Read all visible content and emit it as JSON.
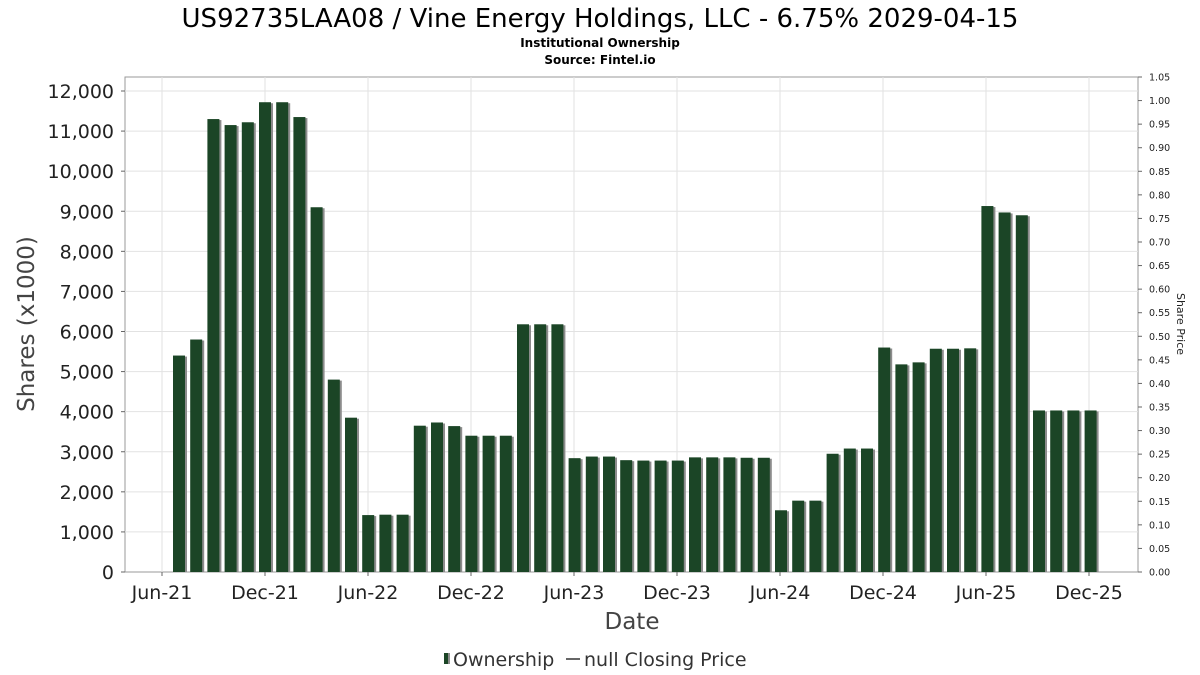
{
  "chart_data": {
    "type": "bar",
    "title": "US92735LAA08 / Vine Energy Holdings, LLC - 6.75% 2029-04-15",
    "subtitle_lines": [
      "Institutional Ownership",
      "Source: Fintel.io"
    ],
    "xlabel": "Date",
    "ylabel": "Shares (x1000)",
    "y2label": "Share Price",
    "ylim": [
      0,
      12000
    ],
    "y_ticks": [
      "0",
      "1,000",
      "2,000",
      "3,000",
      "4,000",
      "5,000",
      "6,000",
      "7,000",
      "8,000",
      "9,000",
      "10,000",
      "11,000",
      "12,000"
    ],
    "y2lim": [
      0,
      1.05
    ],
    "y2_ticks": [
      "0.00",
      "0.05",
      "0.10",
      "0.15",
      "0.20",
      "0.25",
      "0.30",
      "0.35",
      "0.40",
      "0.45",
      "0.50",
      "0.55",
      "0.60",
      "0.65",
      "0.70",
      "0.75",
      "0.80",
      "0.85",
      "0.90",
      "0.95",
      "1.00",
      "1.05"
    ],
    "x_ticks": [
      "Jun-21",
      "Dec-21",
      "Jun-22",
      "Dec-22",
      "Jun-23",
      "Dec-23",
      "Jun-24",
      "Dec-24",
      "Jun-25",
      "Dec-25"
    ],
    "grid": true,
    "legend_position": "bottom",
    "colors": {
      "bar": "#1b4526",
      "bar_shadow": "#8c8c8c",
      "grid": "#e2e2e2"
    },
    "series": [
      {
        "name": "Ownership",
        "legend_label": "Ownership",
        "values": [
          5400,
          5800,
          11300,
          11150,
          11220,
          11720,
          11720,
          11350,
          9100,
          4800,
          3850,
          1420,
          1430,
          1430,
          3650,
          3730,
          3640,
          3400,
          3400,
          3400,
          6180,
          6180,
          6180,
          2840,
          2880,
          2880,
          2790,
          2780,
          2780,
          2780,
          2860,
          2860,
          2860,
          2850,
          2850,
          1540,
          1780,
          1780,
          2950,
          3080,
          3080,
          5600,
          5180,
          5230,
          5570,
          5570,
          5580,
          9130,
          8970,
          8900,
          4030,
          4030,
          4030,
          4030
        ]
      },
      {
        "name": "null Closing Price",
        "legend_label": "null Closing Price",
        "values": []
      }
    ]
  }
}
